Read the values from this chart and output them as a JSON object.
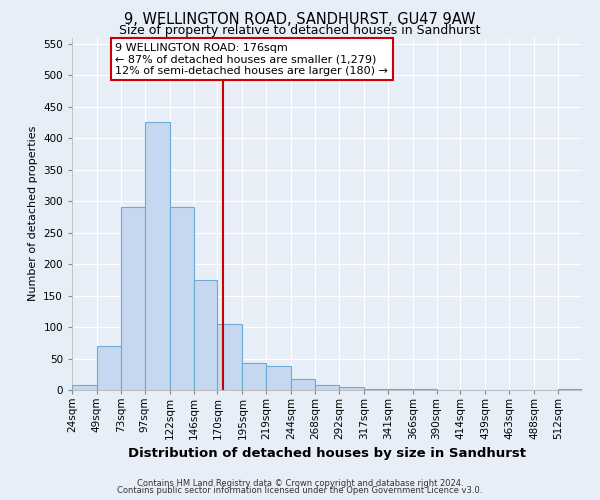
{
  "title": "9, WELLINGTON ROAD, SANDHURST, GU47 9AW",
  "subtitle": "Size of property relative to detached houses in Sandhurst",
  "xlabel": "Distribution of detached houses by size in Sandhurst",
  "ylabel": "Number of detached properties",
  "bin_labels": [
    "24sqm",
    "49sqm",
    "73sqm",
    "97sqm",
    "122sqm",
    "146sqm",
    "170sqm",
    "195sqm",
    "219sqm",
    "244sqm",
    "268sqm",
    "292sqm",
    "317sqm",
    "341sqm",
    "366sqm",
    "390sqm",
    "414sqm",
    "439sqm",
    "463sqm",
    "488sqm",
    "512sqm"
  ],
  "bin_starts": [
    24,
    49,
    73,
    97,
    122,
    146,
    170,
    195,
    219,
    244,
    268,
    292,
    317,
    341,
    366,
    390,
    414,
    439,
    463,
    488,
    512
  ],
  "bin_width": 24,
  "bar_heights": [
    8,
    70,
    290,
    425,
    290,
    175,
    105,
    43,
    38,
    18,
    8,
    5,
    2,
    1,
    1,
    0,
    0,
    0,
    0,
    0,
    1
  ],
  "bar_color": "#c5d8f0",
  "bar_edge_color": "#6aaad4",
  "vline_x": 176,
  "vline_color": "#cc0000",
  "ylim": [
    0,
    560
  ],
  "yticks": [
    0,
    50,
    100,
    150,
    200,
    250,
    300,
    350,
    400,
    450,
    500,
    550
  ],
  "annotation_title": "9 WELLINGTON ROAD: 176sqm",
  "annotation_line1": "← 87% of detached houses are smaller (1,279)",
  "annotation_line2": "12% of semi-detached houses are larger (180) →",
  "annotation_box_color": "#ffffff",
  "annotation_box_edge": "#cc0000",
  "footer1": "Contains HM Land Registry data © Crown copyright and database right 2024.",
  "footer2": "Contains public sector information licensed under the Open Government Licence v3.0.",
  "bg_color": "#e8eef7",
  "grid_color": "#ffffff",
  "title_fontsize": 10.5,
  "subtitle_fontsize": 9,
  "ylabel_fontsize": 8,
  "xlabel_fontsize": 9.5,
  "tick_fontsize": 7.5,
  "ann_fontsize": 8
}
